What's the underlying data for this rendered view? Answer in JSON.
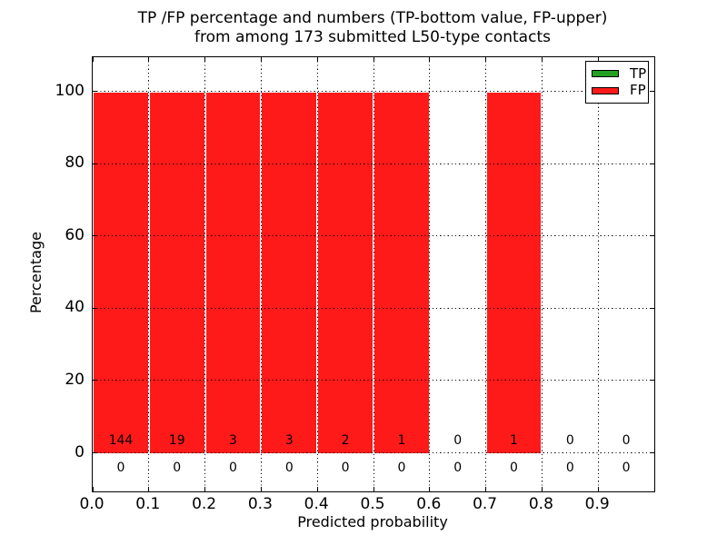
{
  "figure": {
    "title_line1": "TP /FP percentage and numbers (TP-bottom value, FP-upper)",
    "title_line2": "from among 173 submitted L50-type contacts",
    "xlabel": "Predicted probability",
    "ylabel": "Percentage"
  },
  "legend": {
    "position": "upper right",
    "items": [
      {
        "label": "TP",
        "color": "#22a022"
      },
      {
        "label": "FP",
        "color": "#ff1a1a"
      }
    ]
  },
  "chart_data": {
    "type": "bar",
    "subtype": "stacked-percentage-histogram",
    "title": "TP /FP percentage and numbers (TP-bottom value, FP-upper) from among 173 submitted L50-type contacts",
    "xlabel": "Predicted probability",
    "ylabel": "Percentage",
    "total_contacts": 173,
    "contact_type": "L50",
    "bin_width": 0.1,
    "bin_starts": [
      0.0,
      0.1,
      0.2,
      0.3,
      0.4,
      0.5,
      0.6,
      0.7,
      0.8,
      0.9
    ],
    "xtick_labels": [
      "0.0",
      "0.1",
      "0.2",
      "0.3",
      "0.4",
      "0.5",
      "0.6",
      "0.7",
      "0.8",
      "0.9"
    ],
    "ytick_values": [
      0,
      20,
      40,
      60,
      80,
      100
    ],
    "xlim": [
      0.0,
      1.0
    ],
    "ylim": [
      -10.9,
      109.5
    ],
    "grid": {
      "on": true,
      "linestyle": "dotted",
      "color": "#000000"
    },
    "bar_edge_color": "#ffffff",
    "series": [
      {
        "name": "TP",
        "color": "#22a022",
        "counts": [
          0,
          0,
          0,
          0,
          0,
          0,
          0,
          0,
          0,
          0
        ],
        "percent": [
          0,
          0,
          0,
          0,
          0,
          0,
          0,
          0,
          0,
          0
        ]
      },
      {
        "name": "FP",
        "color": "#ff1a1a",
        "counts": [
          144,
          19,
          3,
          3,
          2,
          1,
          0,
          1,
          0,
          0
        ],
        "percent": [
          100,
          100,
          100,
          100,
          100,
          100,
          0,
          100,
          0,
          0
        ]
      }
    ],
    "annotation_note": "FP count printed just above 0-line, TP count printed below 0-line, per bin"
  }
}
